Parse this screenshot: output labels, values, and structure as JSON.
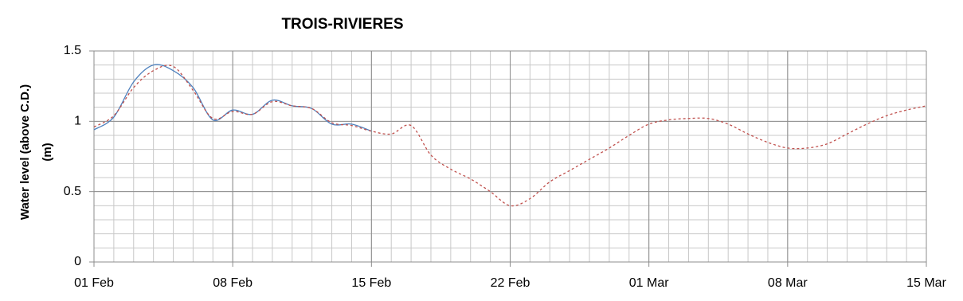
{
  "chart_data": {
    "type": "line",
    "title": "TROIS-RIVIERES",
    "ylabel": [
      "Water level (above C.D.)",
      "(m)"
    ],
    "x": [
      0,
      1,
      2,
      3,
      4,
      5,
      6,
      7,
      8,
      9,
      10,
      11,
      12,
      13,
      14,
      15,
      16,
      17,
      18,
      19,
      20,
      21,
      22,
      23,
      24,
      25,
      26,
      27,
      28,
      29,
      30,
      31,
      32,
      33,
      34,
      35,
      36,
      37,
      38,
      39,
      40,
      41,
      42
    ],
    "series": [
      {
        "color": "#4f81bd",
        "dash": false,
        "values": [
          0.94,
          1.03,
          1.28,
          1.4,
          1.36,
          1.24,
          1.01,
          1.08,
          1.05,
          1.15,
          1.11,
          1.09,
          0.98,
          0.98,
          0.93,
          null,
          null,
          null,
          null,
          null,
          null,
          null,
          null,
          null,
          null,
          null,
          null,
          null,
          null,
          null,
          null,
          null,
          null,
          null,
          null,
          null,
          null,
          null,
          null,
          null,
          null,
          null,
          null
        ]
      },
      {
        "color": "#c0504d",
        "dash": true,
        "values": [
          0.96,
          1.04,
          1.24,
          1.36,
          1.39,
          1.22,
          1.02,
          1.07,
          1.05,
          1.14,
          1.11,
          1.09,
          0.99,
          0.97,
          0.93,
          0.91,
          0.97,
          0.76,
          0.66,
          0.59,
          0.5,
          0.4,
          0.45,
          0.57,
          0.65,
          0.73,
          0.81,
          0.9,
          0.98,
          1.01,
          1.02,
          1.02,
          0.98,
          0.91,
          0.85,
          0.81,
          0.81,
          0.84,
          0.91,
          0.98,
          1.04,
          1.08,
          1.11
        ]
      }
    ],
    "xlim": [
      0,
      42
    ],
    "xticks": [
      {
        "value": 0,
        "label": "01 Feb"
      },
      {
        "value": 7,
        "label": "08 Feb"
      },
      {
        "value": 14,
        "label": "15 Feb"
      },
      {
        "value": 21,
        "label": "22 Feb"
      },
      {
        "value": 28,
        "label": "01 Mar"
      },
      {
        "value": 35,
        "label": "08 Mar"
      },
      {
        "value": 42,
        "label": "15 Mar"
      }
    ],
    "ylim": [
      0,
      1.5
    ],
    "yticks": [
      0,
      0.5,
      1,
      1.5
    ],
    "grid": true,
    "minor_grid": {
      "x": 1,
      "y": 0.1
    }
  }
}
